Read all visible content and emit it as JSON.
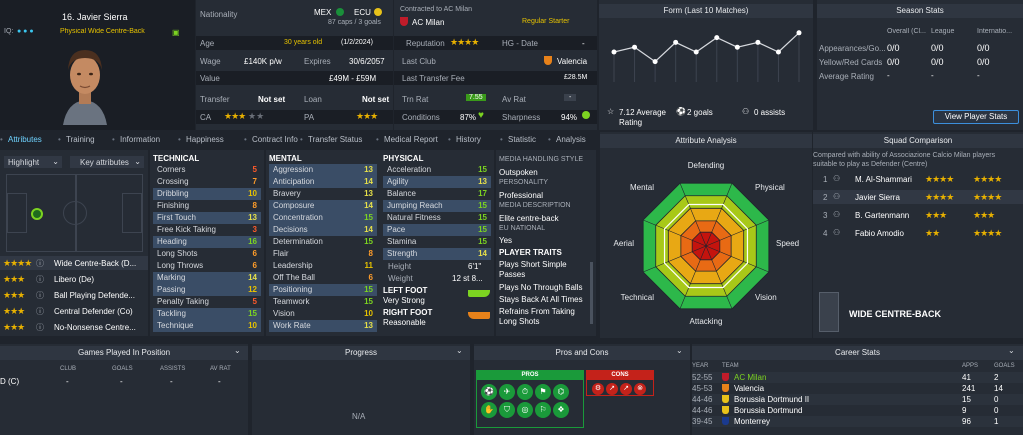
{
  "player": {
    "number_name": "16. Javier Sierra",
    "iq_label": "IQ:",
    "role": "Physical Wide Centre-Back",
    "nationality_label": "Nationality",
    "nation1": "MEX",
    "nation2": "ECU",
    "caps": "87 caps / 3 goals",
    "age_label": "Age",
    "age": "30 years old",
    "dob": "(1/2/2024)",
    "wage_label": "Wage",
    "wage": "£140K p/w",
    "expires_label": "Expires",
    "expires": "30/6/2057",
    "value_label": "Value",
    "value": "£49M - £59M",
    "transfer_label": "Transfer",
    "transfer": "Not set",
    "loan_label": "Loan",
    "loan": "Not set",
    "ca_label": "CA",
    "pa_label": "PA",
    "ca_stars": "★★★",
    "pa_stars": "★★★",
    "contracted_label": "Contracted to AC Milan",
    "club": "AC Milan",
    "status": "Regular Starter",
    "reputation_label": "Reputation",
    "reputation_stars": "★★★★",
    "hg_label": "HG - Date",
    "hg_value": "-",
    "last_club_label": "Last Club",
    "last_club": "Valencia",
    "last_fee_label": "Last Transfer Fee",
    "last_fee": "£28.5M",
    "trn_rat_label": "Trn Rat",
    "trn_rat": "7.55",
    "av_rat_label": "Av Rat",
    "av_rat": "-",
    "conditions_label": "Conditions",
    "conditions": "87%",
    "sharpness_label": "Sharpness",
    "sharpness": "94%"
  },
  "form": {
    "title": "Form (Last 10 Matches)",
    "values": [
      7.0,
      7.1,
      6.8,
      7.2,
      7.0,
      7.3,
      7.1,
      7.2,
      7.0,
      7.4
    ],
    "avg_value": "7.12 Average",
    "avg_label": "Rating",
    "goals": "2 goals",
    "assists": "0 assists"
  },
  "season": {
    "title": "Season Stats",
    "cols": [
      "Overall (Cl...",
      "League",
      "Internatio..."
    ],
    "rows": [
      {
        "label": "Appearances/Go...",
        "vals": [
          "0/0",
          "0/0",
          "0/0"
        ]
      },
      {
        "label": "Yellow/Red Cards",
        "vals": [
          "0/0",
          "0/0",
          "0/0"
        ]
      },
      {
        "label": "Average Rating",
        "vals": [
          "-",
          "-",
          "-"
        ]
      }
    ],
    "button": "View Player Stats"
  },
  "tabs": [
    "Attributes",
    "Training",
    "Information",
    "Happiness",
    "Contract Info",
    "Transfer Status",
    "Medical Report",
    "History",
    "Statistic",
    "Analysis"
  ],
  "left": {
    "highlight": "Highlight",
    "key_attr": "Key attributes",
    "roles": [
      {
        "stars": "★★★★",
        "name": "Wide Centre-Back (D..."
      },
      {
        "stars": "★★★",
        "name": "Libero (De)"
      },
      {
        "stars": "★★★",
        "name": "Ball Playing Defende..."
      },
      {
        "stars": "★★★",
        "name": "Central Defender (Co)"
      },
      {
        "stars": "★★★",
        "name": "No-Nonsense Centre..."
      }
    ]
  },
  "technical": {
    "title": "TECHNICAL",
    "items": [
      {
        "name": "Corners",
        "val": "5"
      },
      {
        "name": "Crossing",
        "val": "7"
      },
      {
        "name": "Dribbling",
        "val": "10"
      },
      {
        "name": "Finishing",
        "val": "8"
      },
      {
        "name": "First Touch",
        "val": "13"
      },
      {
        "name": "Free Kick Taking",
        "val": "3"
      },
      {
        "name": "Heading",
        "val": "16"
      },
      {
        "name": "Long Shots",
        "val": "6"
      },
      {
        "name": "Long Throws",
        "val": "6"
      },
      {
        "name": "Marking",
        "val": "14"
      },
      {
        "name": "Passing",
        "val": "12"
      },
      {
        "name": "Penalty Taking",
        "val": "5"
      },
      {
        "name": "Tackling",
        "val": "15"
      },
      {
        "name": "Technique",
        "val": "10"
      }
    ]
  },
  "mental": {
    "title": "MENTAL",
    "items": [
      {
        "name": "Aggression",
        "val": "13"
      },
      {
        "name": "Anticipation",
        "val": "14"
      },
      {
        "name": "Bravery",
        "val": "13"
      },
      {
        "name": "Composure",
        "val": "14"
      },
      {
        "name": "Concentration",
        "val": "15"
      },
      {
        "name": "Decisions",
        "val": "14"
      },
      {
        "name": "Determination",
        "val": "15"
      },
      {
        "name": "Flair",
        "val": "8"
      },
      {
        "name": "Leadership",
        "val": "11"
      },
      {
        "name": "Off The Ball",
        "val": "6"
      },
      {
        "name": "Positioning",
        "val": "15"
      },
      {
        "name": "Teamwork",
        "val": "15"
      },
      {
        "name": "Vision",
        "val": "10"
      },
      {
        "name": "Work Rate",
        "val": "13"
      }
    ]
  },
  "physical": {
    "title": "PHYSICAL",
    "items": [
      {
        "name": "Acceleration",
        "val": "15"
      },
      {
        "name": "Agility",
        "val": "13"
      },
      {
        "name": "Balance",
        "val": "17"
      },
      {
        "name": "Jumping Reach",
        "val": "15"
      },
      {
        "name": "Natural Fitness",
        "val": "15"
      },
      {
        "name": "Pace",
        "val": "15"
      },
      {
        "name": "Stamina",
        "val": "15"
      },
      {
        "name": "Strength",
        "val": "14"
      }
    ],
    "height_label": "Height",
    "height": "6'1\"",
    "weight_label": "Weight",
    "weight": "12 st 8...",
    "left_foot_label": "LEFT FOOT",
    "left_foot": "Very Strong",
    "right_foot_label": "RIGHT FOOT",
    "right_foot": "Reasonable"
  },
  "media": {
    "title": "MEDIA HANDLING STYLE",
    "style": "Outspoken",
    "personality_label": "PERSONALITY",
    "personality": "Professional",
    "description_label": "MEDIA DESCRIPTION",
    "description": "Elite centre-back",
    "eu_label": "EU NATIONAL",
    "eu": "Yes",
    "traits_label": "PLAYER TRAITS",
    "traits": [
      "Plays Short Simple Passes",
      "Plays No Through Balls",
      "Stays Back At All Times",
      "Refrains From Taking Long Shots"
    ]
  },
  "analysis": {
    "title": "Attribute Analysis",
    "labels": [
      "Defending",
      "Physical",
      "Speed",
      "Vision",
      "Attacking",
      "Technical",
      "Aerial",
      "Mental"
    ]
  },
  "squad": {
    "title": "Squad Comparison",
    "desc": "Compared with ability of Associazione Calcio Milan players suitable to play as Defender (Centre)",
    "rows": [
      {
        "rank": "1",
        "name": "M. Al-Shammari",
        "s1": "★★★★",
        "s2": "★★★★"
      },
      {
        "rank": "2",
        "name": "Javier Sierra",
        "s1": "★★★★",
        "s2": "★★★★"
      },
      {
        "rank": "3",
        "name": "B. Gartenmann",
        "s1": "★★★",
        "s2": "★★★"
      },
      {
        "rank": "4",
        "name": "Fabio Amodio",
        "s1": "★★",
        "s2": "★★★★"
      }
    ],
    "position": "WIDE CENTRE-BACK"
  },
  "games": {
    "title": "Games Played In Position",
    "cols": [
      "CLUB",
      "GOALS",
      "ASSISTS",
      "AV RAT"
    ],
    "row_pos": "D (C)",
    "row_vals": [
      "-",
      "-",
      "-",
      "-"
    ]
  },
  "progress": {
    "title": "Progress",
    "na": "N/A"
  },
  "pros": {
    "title": "Pros and Cons",
    "pros_label": "PROS",
    "cons_label": "CONS"
  },
  "career": {
    "title": "Career Stats",
    "cols": [
      "YEAR",
      "TEAM",
      "APPS",
      "GOALS"
    ],
    "rows": [
      {
        "year": "52-55",
        "team": "AC Milan",
        "apps": "41",
        "goals": "2"
      },
      {
        "year": "45-53",
        "team": "Valencia",
        "apps": "241",
        "goals": "14"
      },
      {
        "year": "44-46",
        "team": "Borussia Dortmund II",
        "apps": "15",
        "goals": "0"
      },
      {
        "year": "44-46",
        "team": "Borussia Dortmund",
        "apps": "9",
        "goals": "0"
      },
      {
        "year": "39-45",
        "team": "Monterrey",
        "apps": "96",
        "goals": "1"
      }
    ]
  },
  "colors": {
    "accent": "#7cd321",
    "star": "#e8b100",
    "highlight_row": "#3a4d66"
  }
}
